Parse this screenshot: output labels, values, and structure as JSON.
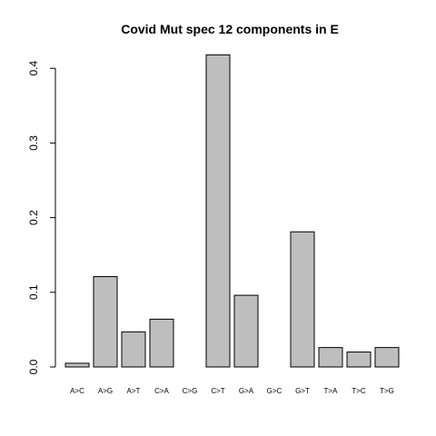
{
  "chart_data": {
    "type": "bar",
    "title": "Covid Mut spec 12 components in E",
    "xlabel": "",
    "ylabel": "",
    "categories": [
      "A>C",
      "A>G",
      "A>T",
      "C>A",
      "C>G",
      "C>T",
      "G>A",
      "G>C",
      "G>T",
      "T>A",
      "T>C",
      "T>G"
    ],
    "values": [
      0.005,
      0.121,
      0.047,
      0.064,
      0.0,
      0.418,
      0.096,
      0.0,
      0.181,
      0.026,
      0.02,
      0.026
    ],
    "ylim": [
      0,
      0.42
    ],
    "yticks": [
      0.0,
      0.1,
      0.2,
      0.3,
      0.4
    ],
    "ytick_labels": [
      "0.0",
      "0.1",
      "0.2",
      "0.3",
      "0.4"
    ],
    "bar_color": "#bebebe",
    "bar_edge_color": "#000000",
    "grid": false,
    "legend": "none"
  }
}
